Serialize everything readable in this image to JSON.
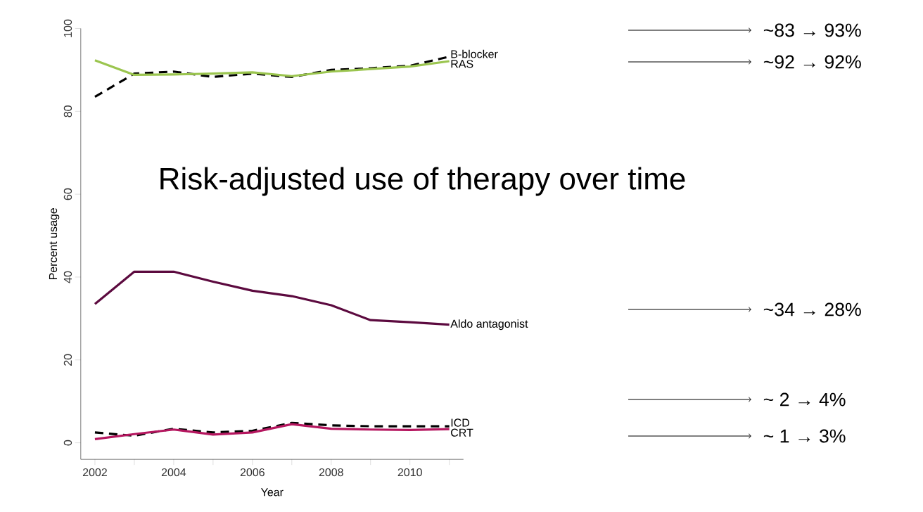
{
  "chart_data": {
    "type": "line",
    "title": "Risk-adjusted use of therapy over time",
    "xlabel": "Year",
    "ylabel": "Percent usage",
    "x": [
      2002,
      2003,
      2004,
      2005,
      2006,
      2007,
      2008,
      2009,
      2010,
      2011
    ],
    "series": [
      {
        "name": "B-blocker",
        "color": "#000000",
        "line_style": "dashed",
        "values": [
          83.5,
          89.1,
          89.6,
          88.3,
          89.1,
          88.3,
          90.0,
          90.4,
          91.0,
          93.2
        ]
      },
      {
        "name": "RAS",
        "color": "#9bc54f",
        "line_style": "solid",
        "values": [
          92.3,
          88.8,
          88.9,
          89.1,
          89.4,
          88.5,
          89.6,
          90.2,
          90.8,
          92.1
        ]
      },
      {
        "name": "Aldo antagonist",
        "color": "#5c0a3f",
        "line_style": "solid",
        "values": [
          33.5,
          41.3,
          41.3,
          38.9,
          36.7,
          35.4,
          33.2,
          29.6,
          29.1,
          28.5
        ]
      },
      {
        "name": "ICD",
        "color": "#000000",
        "line_style": "dashed",
        "values": [
          2.5,
          1.7,
          3.4,
          2.5,
          2.9,
          4.8,
          4.2,
          4.0,
          4.0,
          4.0
        ]
      },
      {
        "name": "CRT",
        "color": "#b5165f",
        "line_style": "solid",
        "values": [
          0.9,
          2.1,
          3.2,
          2.0,
          2.5,
          4.5,
          3.4,
          3.2,
          3.1,
          3.3
        ]
      }
    ],
    "xlim": [
      2001.64,
      2011.36
    ],
    "ylim": [
      -4,
      100
    ],
    "xticks": [
      2002,
      {
        "value": 2003,
        "label": null
      },
      2004,
      {
        "value": 2005,
        "label": null
      },
      2006,
      {
        "value": 2007,
        "label": null
      },
      2008,
      {
        "value": 2009,
        "label": null
      },
      2010,
      {
        "value": 2011,
        "label": null
      }
    ],
    "yticks": [
      0,
      20,
      40,
      60,
      80,
      100
    ],
    "grid": false,
    "marker": "none",
    "annotations": [
      "~83 → 93%",
      "~92 → 92%",
      "~34 → 28%",
      "~ 2 → 4%",
      "~ 1 → 3%"
    ]
  }
}
